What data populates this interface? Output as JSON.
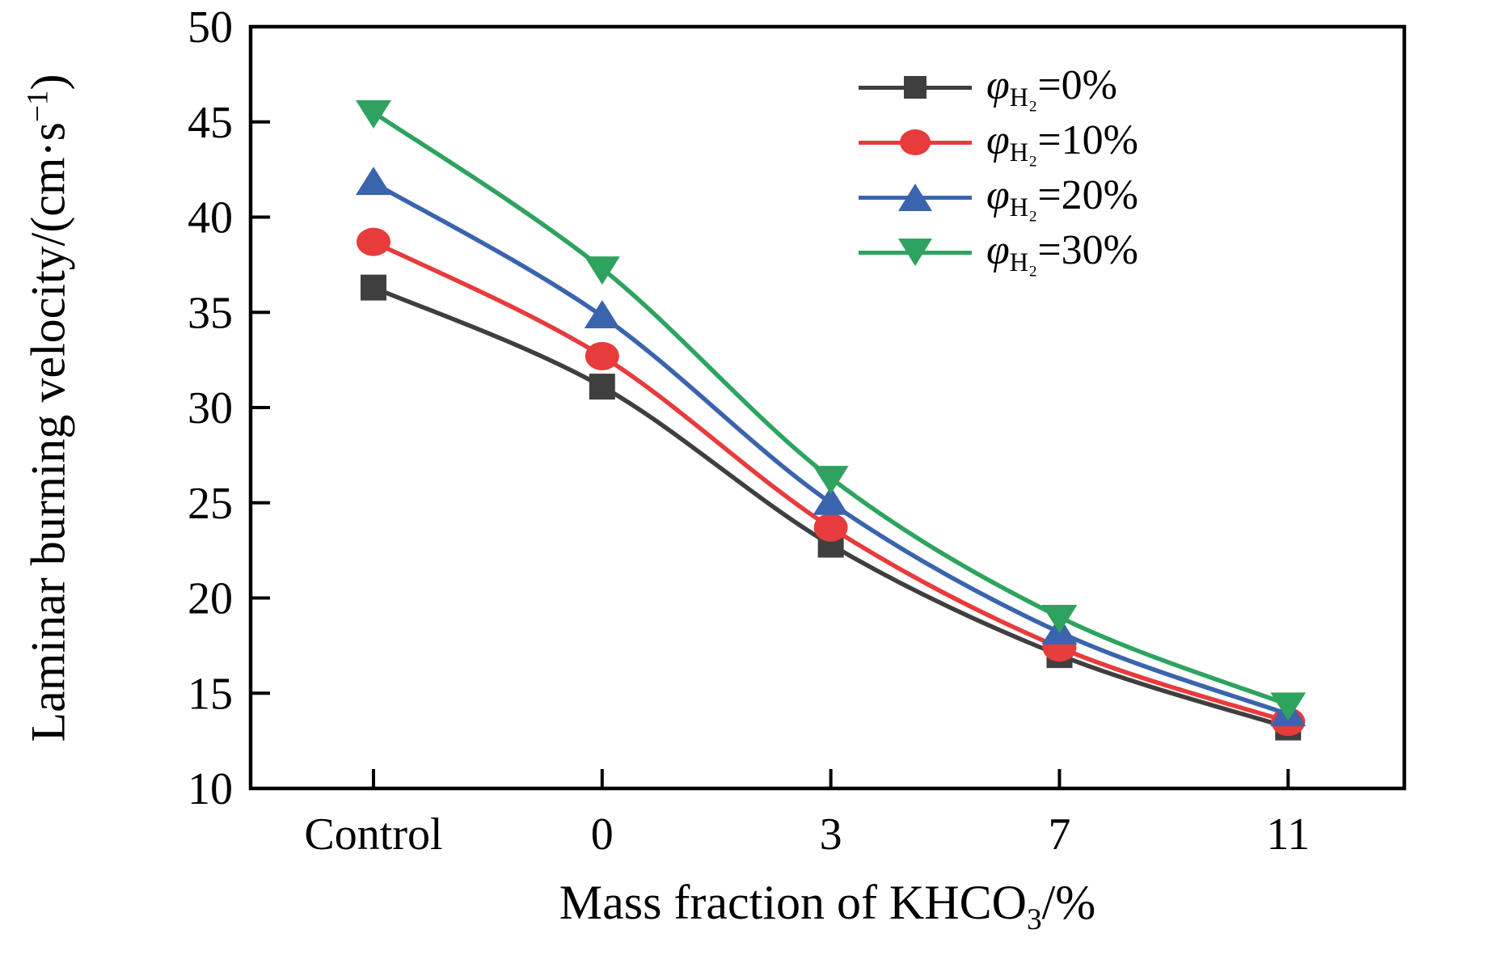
{
  "figure": {
    "background": "#ffffff",
    "frame_color": "#000000"
  },
  "chart_data": {
    "type": "line",
    "title": "",
    "categories": [
      "Control",
      "0",
      "3",
      "7",
      "11"
    ],
    "series": [
      {
        "phi": "φ",
        "sub": "H₂",
        "suffix": "=0%",
        "marker": "square",
        "color": "#3f3f3f",
        "values": [
          36.3,
          31.1,
          22.8,
          17.0,
          13.2
        ]
      },
      {
        "phi": "φ",
        "sub": "H₂",
        "suffix": "=10%",
        "marker": "circle",
        "color": "#e73b3c",
        "values": [
          38.7,
          32.7,
          23.7,
          17.4,
          13.5
        ]
      },
      {
        "phi": "φ",
        "sub": "H₂",
        "suffix": "=20%",
        "marker": "triangle-up",
        "color": "#3a64ad",
        "values": [
          41.8,
          34.8,
          25.0,
          18.2,
          13.9
        ]
      },
      {
        "phi": "φ",
        "sub": "H₂",
        "suffix": "=30%",
        "marker": "triangle-down",
        "color": "#2ea35f",
        "values": [
          45.5,
          37.3,
          26.3,
          19.0,
          14.4
        ]
      }
    ],
    "xlabel": {
      "pre": "Mass fraction of KHCO",
      "sub": "3",
      "post": "/%"
    },
    "ylabel": {
      "pre": "Laminar burning velocity/(cm·s",
      "sup": "−1",
      "post": ")"
    },
    "ylim": [
      10,
      50
    ],
    "ytick_labels": [
      "10",
      "15",
      "20",
      "25",
      "30",
      "35",
      "40",
      "45",
      "50"
    ],
    "grid": false,
    "legend_position": "top-right"
  }
}
